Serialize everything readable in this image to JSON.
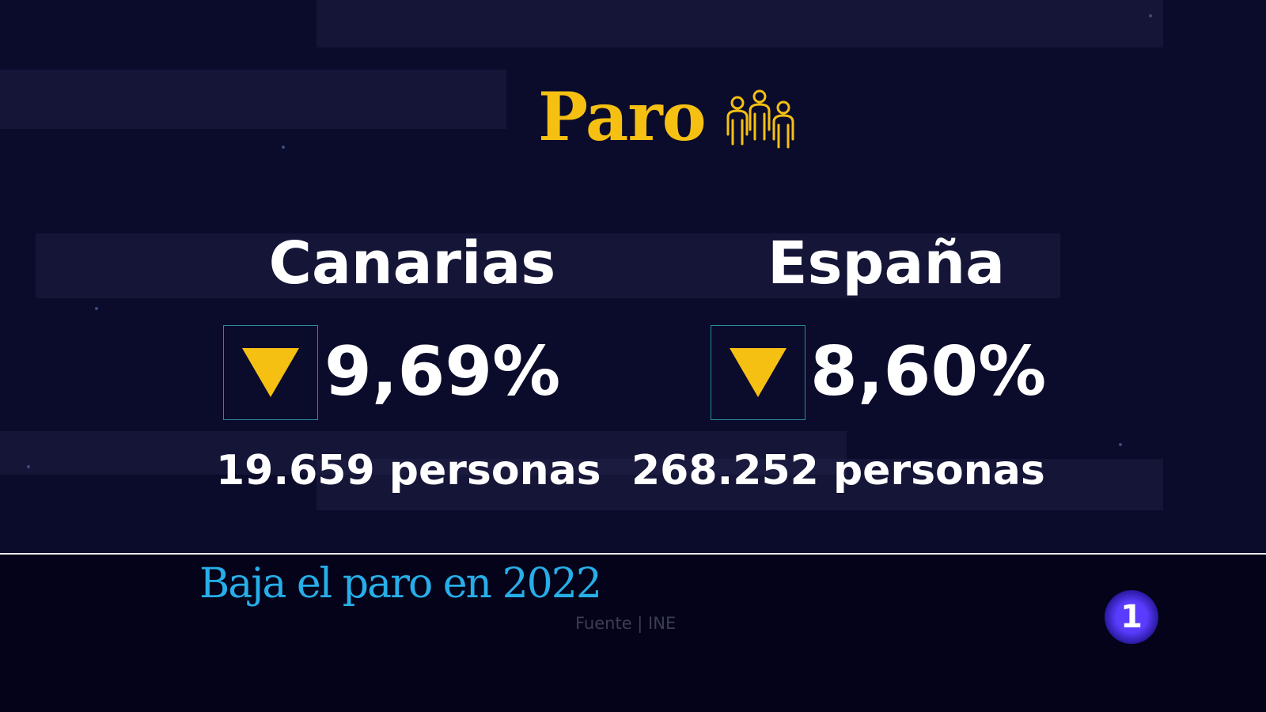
{
  "title": "Paro",
  "title_icon": "people-group-icon",
  "regions": [
    {
      "name": "Canarias",
      "trend_icon": "down-triangle-icon",
      "rate": "9,69%",
      "people": "19.659 personas"
    },
    {
      "name": "España",
      "trend_icon": "down-triangle-icon",
      "rate": "8,60%",
      "people": "268.252 personas"
    }
  ],
  "headline": "Baja el paro en 2022",
  "source": "Fuente | INE",
  "channel_logo": "1",
  "colors": {
    "accent": "#f5c012",
    "headline": "#27aee8",
    "background": "#0b0b2c"
  }
}
